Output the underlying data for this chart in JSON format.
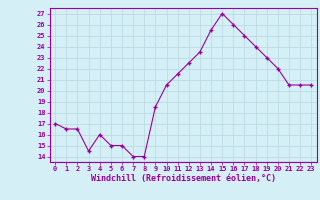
{
  "x": [
    0,
    1,
    2,
    3,
    4,
    5,
    6,
    7,
    8,
    9,
    10,
    11,
    12,
    13,
    14,
    15,
    16,
    17,
    18,
    19,
    20,
    21,
    22,
    23
  ],
  "y": [
    17.0,
    16.5,
    16.5,
    14.5,
    16.0,
    15.0,
    15.0,
    14.0,
    14.0,
    18.5,
    20.5,
    21.5,
    22.5,
    23.5,
    25.5,
    27.0,
    26.0,
    25.0,
    24.0,
    23.0,
    22.0,
    20.5,
    20.5,
    20.5
  ],
  "xlim": [
    -0.5,
    23.5
  ],
  "ylim": [
    13.5,
    27.5
  ],
  "yticks": [
    14,
    15,
    16,
    17,
    18,
    19,
    20,
    21,
    22,
    23,
    24,
    25,
    26,
    27
  ],
  "xtick_labels": [
    "0",
    "1",
    "2",
    "3",
    "4",
    "5",
    "6",
    "7",
    "8",
    "9",
    "10",
    "11",
    "12",
    "13",
    "14",
    "15",
    "16",
    "17",
    "18",
    "19",
    "20",
    "21",
    "22",
    "23"
  ],
  "xlabel": "Windchill (Refroidissement éolien,°C)",
  "line_color": "#990099",
  "marker": "+",
  "bg_color": "#d4eff5",
  "grid_color": "#b8d8e0",
  "axis_label_color": "#990099",
  "tick_color": "#990099",
  "border_color": "#990099"
}
